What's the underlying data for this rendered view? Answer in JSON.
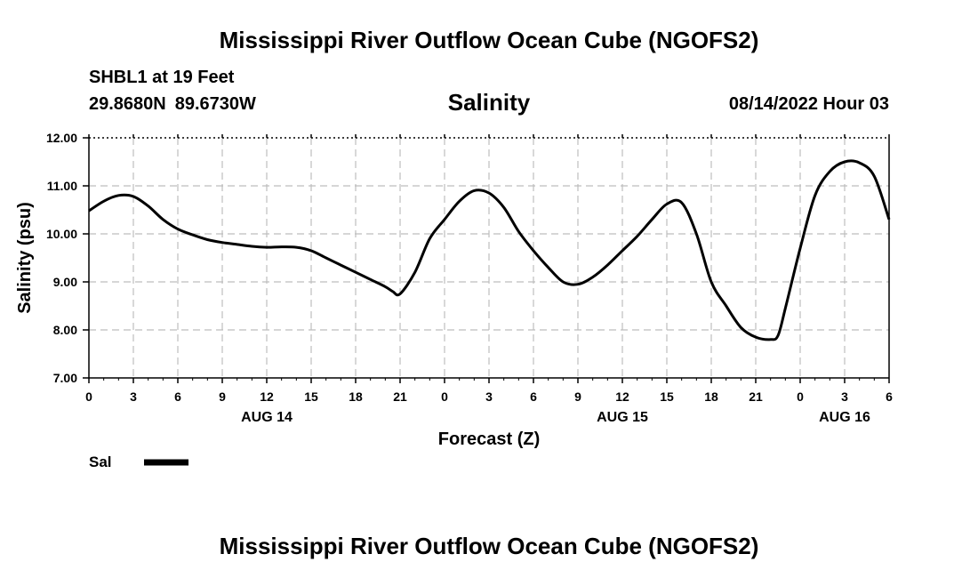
{
  "header": {
    "title": "Mississippi River Outflow Ocean Cube (NGOFS2)",
    "station": "SHBL1 at 19 Feet",
    "lat": "29.8680N",
    "lon": "89.6730W",
    "run_time": "08/14/2022 Hour 03"
  },
  "footer": {
    "title": "Mississippi River Outflow Ocean Cube (NGOFS2)"
  },
  "chart_data": {
    "type": "line",
    "title": "Salinity",
    "xlabel": "Forecast (Z)",
    "ylabel": "Salinity (psu)",
    "ylim": [
      7.0,
      12.0
    ],
    "y_ticks": [
      "7.00",
      "8.00",
      "9.00",
      "10.00",
      "11.00",
      "12.00"
    ],
    "xlim_hours": [
      0,
      54
    ],
    "x_tick_labels": [
      "0",
      "3",
      "6",
      "9",
      "12",
      "15",
      "18",
      "21",
      "0",
      "3",
      "6",
      "9",
      "12",
      "15",
      "18",
      "21",
      "0",
      "3",
      "6"
    ],
    "date_labels": [
      {
        "label": "AUG 14",
        "hour": 12
      },
      {
        "label": "AUG 15",
        "hour": 36
      },
      {
        "label": "AUG 16",
        "hour": 51
      }
    ],
    "grid": true,
    "legend": {
      "label": "Sal",
      "position": "bottom-left"
    },
    "series": [
      {
        "name": "Sal",
        "color": "#000000",
        "x": [
          0,
          1,
          2,
          3,
          4,
          5,
          6,
          7,
          8,
          9,
          10,
          11,
          12,
          13,
          14,
          15,
          16,
          17,
          18,
          19,
          20,
          20.5,
          21,
          22,
          23,
          24,
          25,
          26,
          27,
          28,
          29,
          30,
          31,
          32,
          33,
          34,
          35,
          36,
          37,
          38,
          39,
          40,
          41,
          42,
          43,
          44,
          45,
          46,
          46.5,
          47,
          48,
          49,
          50,
          51,
          52,
          53,
          54
        ],
        "values": [
          10.48,
          10.68,
          10.8,
          10.78,
          10.58,
          10.3,
          10.1,
          9.98,
          9.88,
          9.82,
          9.78,
          9.74,
          9.72,
          9.73,
          9.72,
          9.65,
          9.5,
          9.35,
          9.2,
          9.05,
          8.9,
          8.8,
          8.75,
          9.2,
          9.9,
          10.3,
          10.68,
          10.9,
          10.85,
          10.55,
          10.05,
          9.65,
          9.3,
          9.0,
          8.95,
          9.1,
          9.35,
          9.65,
          9.95,
          10.3,
          10.62,
          10.65,
          10.0,
          9.0,
          8.5,
          8.05,
          7.85,
          7.8,
          7.88,
          8.45,
          9.7,
          10.8,
          11.3,
          11.5,
          11.48,
          11.2,
          10.3
        ]
      }
    ]
  }
}
